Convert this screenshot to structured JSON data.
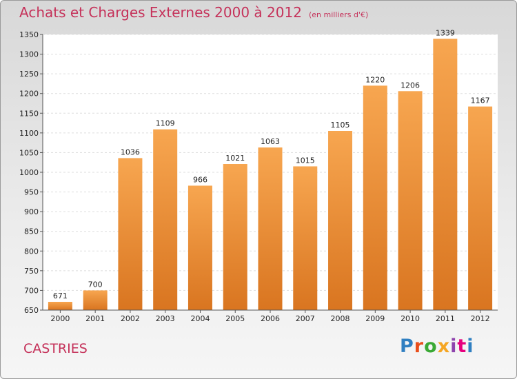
{
  "title": "Achats et Charges Externes 2000 à 2012",
  "unit": "(en milliers d'€)",
  "location": "CASTRIES",
  "logo": {
    "text": "Proxiti",
    "colors": [
      "#2f7fc1",
      "#e94e1b",
      "#3aa935",
      "#f5a623",
      "#8e44ad",
      "#e6007e",
      "#2f7fc1"
    ]
  },
  "colors": {
    "bar_top": "#f7a650",
    "bar_bottom": "#d97520",
    "title": "#c5325a"
  },
  "chart_data": {
    "type": "bar",
    "categories": [
      "2000",
      "2001",
      "2002",
      "2003",
      "2004",
      "2005",
      "2006",
      "2007",
      "2008",
      "2009",
      "2010",
      "2011",
      "2012"
    ],
    "values": [
      671,
      700,
      1036,
      1109,
      966,
      1021,
      1063,
      1015,
      1105,
      1220,
      1206,
      1339,
      1167
    ],
    "ylim": [
      650,
      1350
    ],
    "yticks": [
      650,
      700,
      750,
      800,
      850,
      900,
      950,
      1000,
      1050,
      1100,
      1150,
      1200,
      1250,
      1300,
      1350
    ],
    "grid": true,
    "xlabel": "",
    "ylabel": ""
  }
}
